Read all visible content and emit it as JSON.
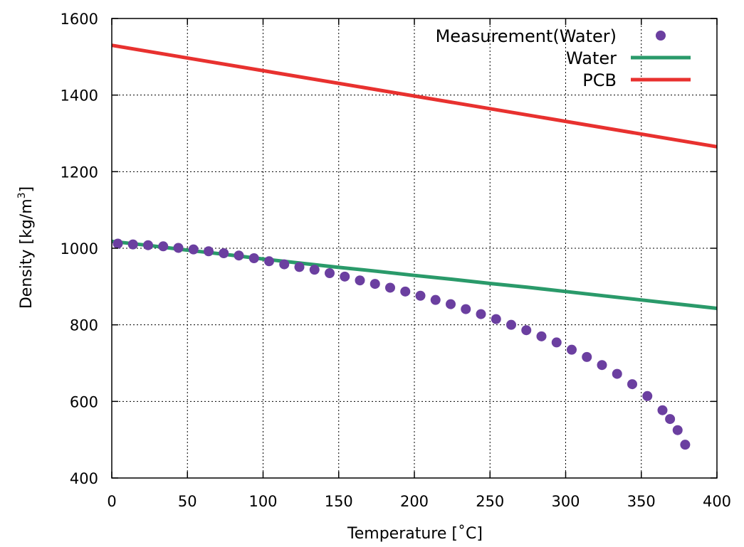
{
  "chart_data": {
    "type": "line",
    "xlabel": "Temperature [˚C]",
    "ylabel_main": "Density [kg/m",
    "ylabel_sup": "3",
    "ylabel_close": "]",
    "xlim": [
      0,
      400
    ],
    "ylim": [
      400,
      1600
    ],
    "x_ticks": [
      "0",
      "50",
      "100",
      "150",
      "200",
      "250",
      "300",
      "350",
      "400"
    ],
    "y_ticks": [
      "400",
      "600",
      "800",
      "1000",
      "1200",
      "1400",
      "1600"
    ],
    "x_tick_values": [
      0,
      50,
      100,
      150,
      200,
      250,
      300,
      350,
      400
    ],
    "y_tick_values": [
      400,
      600,
      800,
      1000,
      1200,
      1400,
      1600
    ],
    "grid": true,
    "legend_position": "top-right",
    "series": [
      {
        "name": "Measurement(Water)",
        "kind": "scatter",
        "color": "#6b3fa0",
        "x": [
          4,
          14,
          24,
          34,
          44,
          54,
          64,
          74,
          84,
          94,
          104,
          114,
          124,
          134,
          144,
          154,
          164,
          174,
          184,
          194,
          204,
          214,
          224,
          234,
          244,
          254,
          264,
          274,
          284,
          294,
          304,
          314,
          324,
          334,
          344,
          354,
          364,
          369,
          374,
          379
        ],
        "y": [
          1012,
          1010,
          1008,
          1005,
          1001,
          997,
          992,
          987,
          981,
          974,
          966,
          958,
          951,
          944,
          935,
          926,
          916,
          907,
          897,
          887,
          876,
          865,
          854,
          841,
          828,
          815,
          800,
          786,
          770,
          754,
          735,
          716,
          695,
          672,
          645,
          614,
          577,
          554,
          525,
          487
        ]
      },
      {
        "name": "Water",
        "kind": "line",
        "color": "#2a9a6a",
        "x": [
          0,
          25,
          50,
          75,
          100,
          125,
          150,
          175,
          200,
          225,
          250,
          275,
          300,
          325,
          350,
          375,
          400
        ],
        "y": [
          1018,
          1007,
          995,
          984,
          972,
          961,
          950,
          940,
          929,
          919,
          908,
          898,
          887,
          876,
          865,
          854,
          843
        ]
      },
      {
        "name": "PCB",
        "kind": "line",
        "color": "#e8312f",
        "x": [
          0,
          400
        ],
        "y": [
          1530,
          1265
        ]
      }
    ]
  }
}
